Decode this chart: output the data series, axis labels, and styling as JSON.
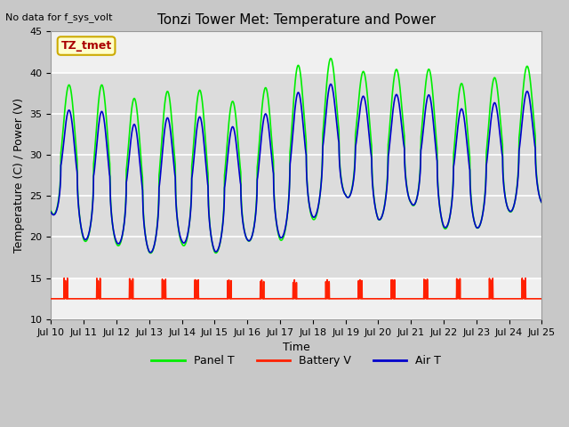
{
  "title": "Tonzi Tower Met: Temperature and Power",
  "no_data_text": "No data for f_sys_volt",
  "xlabel": "Time",
  "ylabel": "Temperature (C) / Power (V)",
  "ylim": [
    10,
    45
  ],
  "xlim": [
    0,
    15
  ],
  "x_tick_labels": [
    "Jul 10",
    "Jul 11",
    "Jul 12",
    "Jul 13",
    "Jul 14",
    "Jul 15",
    "Jul 16",
    "Jul 17",
    "Jul 18",
    "Jul 19",
    "Jul 20",
    "Jul 21",
    "Jul 22",
    "Jul 23",
    "Jul 24",
    "Jul 25"
  ],
  "fig_bg_color": "#c8c8c8",
  "plot_bg_color": "#f0f0f0",
  "band_color": "#dcdcdc",
  "grid_color": "#ffffff",
  "panel_t_color": "#00ee00",
  "battery_v_color": "#ff2000",
  "air_t_color": "#0000cc",
  "legend_items": [
    "Panel T",
    "Battery V",
    "Air T"
  ],
  "annotation_text": "TZ_tmet",
  "annotation_fg": "#aa0000",
  "annotation_bg": "#ffffcc",
  "annotation_border": "#ccaa00",
  "title_fontsize": 11,
  "label_fontsize": 9,
  "tick_fontsize": 8,
  "legend_fontsize": 9
}
